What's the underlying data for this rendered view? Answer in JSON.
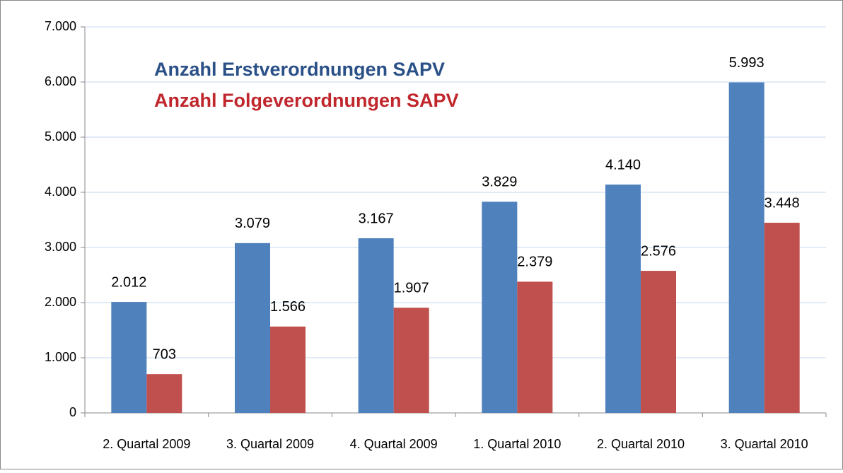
{
  "chart_data": {
    "type": "bar",
    "categories": [
      "2. Quartal 2009",
      "3. Quartal 2009",
      "4. Quartal 2009",
      "1. Quartal 2010",
      "2. Quartal 2010",
      "3. Quartal 2010"
    ],
    "series": [
      {
        "name": "Anzahl Erstverordnungen SAPV",
        "color": "#4f81bd",
        "values": [
          2012,
          3079,
          3167,
          3829,
          4140,
          5993
        ],
        "value_labels": [
          "2.012",
          "3.079",
          "3.167",
          "3.829",
          "4.140",
          "5.993"
        ]
      },
      {
        "name": "Anzahl Folgeverordnungen SAPV",
        "color": "#c0504d",
        "values": [
          703,
          1566,
          1907,
          2379,
          2576,
          3448
        ],
        "value_labels": [
          "703",
          "1.566",
          "1.907",
          "2.379",
          "2.576",
          "3.448"
        ]
      }
    ],
    "ylim": [
      0,
      7000
    ],
    "yticks": [
      0,
      {
        "value": 1000,
        "label": "1.000"
      },
      {
        "value": 2000,
        "label": "2.000"
      },
      {
        "value": 3000,
        "label": "3.000"
      },
      {
        "value": 4000,
        "label": "4.000"
      },
      {
        "value": 5000,
        "label": "5.000"
      },
      {
        "value": 6000,
        "label": "6.000"
      },
      {
        "value": 7000,
        "label": "7.000"
      }
    ],
    "grid": true
  }
}
